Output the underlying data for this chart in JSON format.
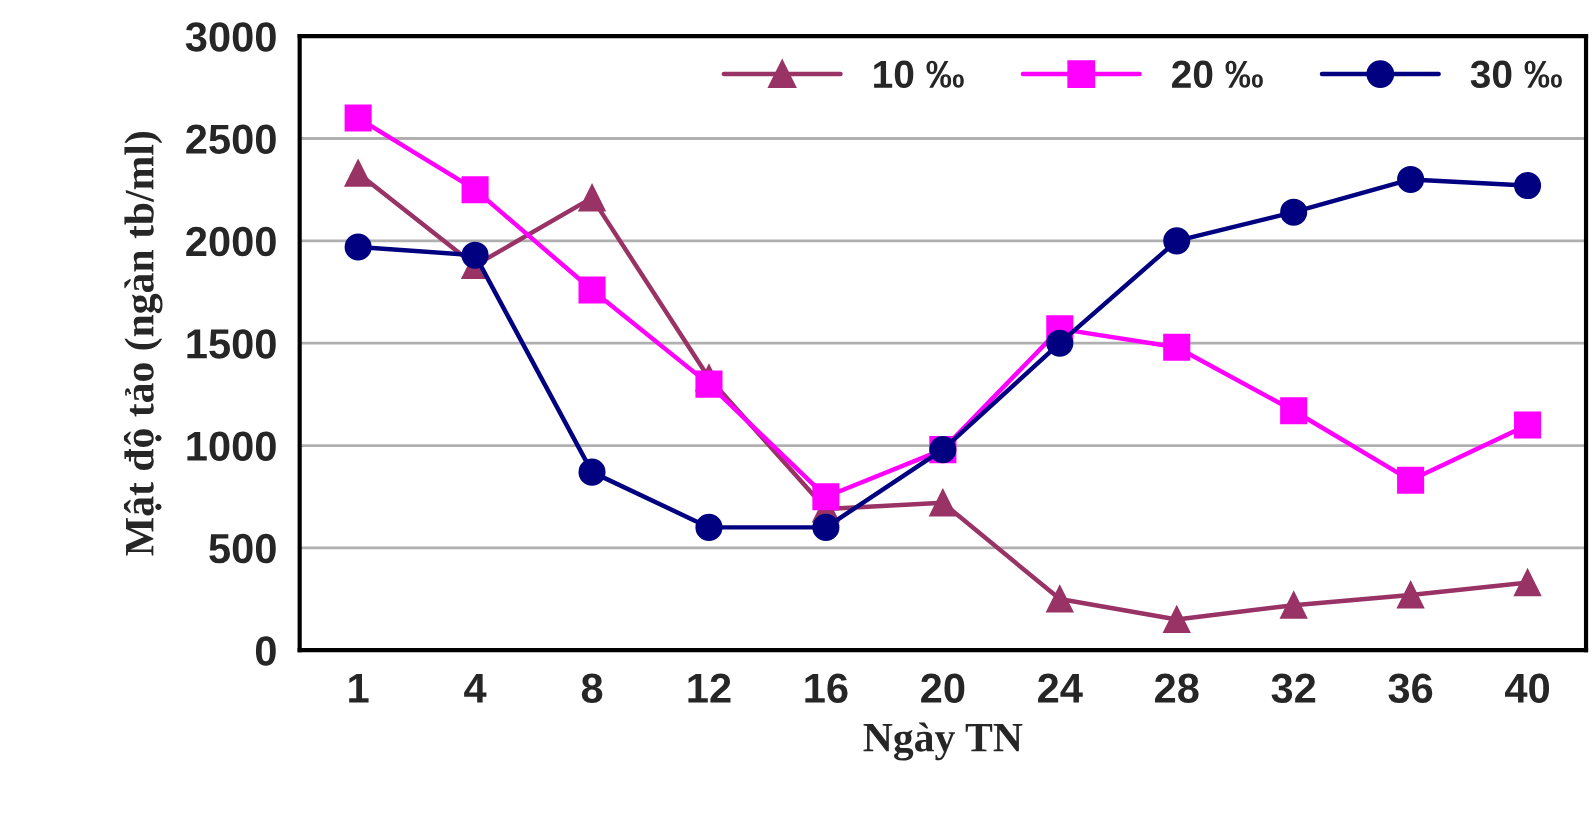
{
  "chart_data": {
    "type": "line",
    "xlabel": "Ngày TN",
    "ylabel": "Mật độ tảo (ngàn tb/ml)",
    "categories": [
      "1",
      "4",
      "8",
      "12",
      "16",
      "20",
      "24",
      "28",
      "32",
      "36",
      "40"
    ],
    "series": [
      {
        "name": "10 ‰",
        "color": "#993366",
        "marker": "triangle",
        "values": [
          2330,
          1880,
          2210,
          1330,
          690,
          720,
          250,
          150,
          220,
          270,
          330
        ]
      },
      {
        "name": "20 ‰",
        "color": "#ff00ff",
        "marker": "square",
        "values": [
          2600,
          2250,
          1760,
          1300,
          750,
          980,
          1570,
          1480,
          1170,
          830,
          1100
        ]
      },
      {
        "name": "30 ‰",
        "color": "#000080",
        "marker": "circle",
        "values": [
          1970,
          1930,
          870,
          600,
          600,
          980,
          1500,
          2000,
          2140,
          2300,
          2270
        ]
      }
    ],
    "ylim": [
      0,
      3000
    ],
    "yticks": [
      0,
      500,
      1000,
      1500,
      2000,
      2500,
      3000
    ],
    "grid": "y",
    "legend": "top right",
    "line_style": "solid"
  }
}
